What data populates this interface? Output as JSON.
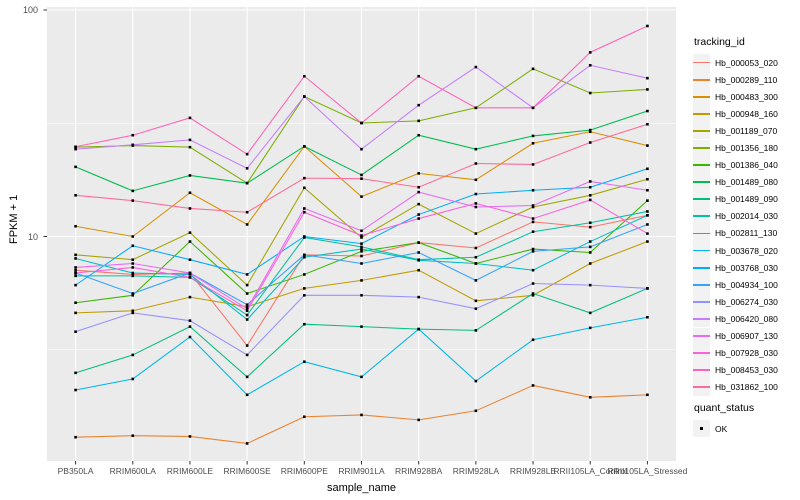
{
  "chart_data": {
    "type": "line",
    "title": "",
    "xlabel": "sample_name",
    "ylabel": "FPKM + 1",
    "y_scale": "log10",
    "y_ticks": [
      10,
      100
    ],
    "y_minor_ticks": [
      3.162,
      31.62
    ],
    "ylim": [
      1.02,
      103
    ],
    "grid": true,
    "panel_bg": "#EBEBEB",
    "gridline_color": "#FFFFFF",
    "point_color": "#000000",
    "legend_position": "right",
    "categories": [
      "PB350LA",
      "RRIM600LA",
      "RRIM600LE",
      "RRIM600SE",
      "RRIM600PE",
      "RRIM901LA",
      "RRIM928BA",
      "RRIM928LA",
      "RRIM928LE",
      "RRII105LA_Control",
      "RRII105LA_Stressed"
    ],
    "legend": {
      "title": "tracking_id"
    },
    "quant_status": {
      "title": "quant_status",
      "items": [
        {
          "label": "OK",
          "marker": "square",
          "color": "#000000"
        }
      ]
    },
    "series": [
      {
        "name": "Hb_000053_020",
        "color": "#F8766D",
        "values": [
          7.1,
          6.8,
          6.9,
          3.3,
          8.3,
          8.2,
          9.4,
          8.9,
          11.6,
          11.0,
          12.4
        ]
      },
      {
        "name": "Hb_000289_110",
        "color": "#EA8331",
        "values": [
          1.3,
          1.32,
          1.31,
          1.22,
          1.6,
          1.63,
          1.55,
          1.7,
          2.2,
          1.95,
          2.0
        ]
      },
      {
        "name": "Hb_000483_300",
        "color": "#D89000",
        "values": [
          11.1,
          10.0,
          15.6,
          11.3,
          25.0,
          15.0,
          19.0,
          17.8,
          25.8,
          29.0,
          25.2
        ]
      },
      {
        "name": "Hb_000948_160",
        "color": "#C09B00",
        "values": [
          4.6,
          4.7,
          5.4,
          4.9,
          5.9,
          6.4,
          7.1,
          5.2,
          5.5,
          7.6,
          9.5
        ]
      },
      {
        "name": "Hb_001189_070",
        "color": "#A3A500",
        "values": [
          8.3,
          7.9,
          10.4,
          6.1,
          16.4,
          9.9,
          13.9,
          10.3,
          13.5,
          15.2,
          17.9
        ]
      },
      {
        "name": "Hb_001356_180",
        "color": "#7CAE00",
        "values": [
          24.8,
          25.2,
          24.8,
          17.2,
          41.5,
          31.7,
          32.4,
          37.0,
          55.0,
          43.0,
          44.6
        ]
      },
      {
        "name": "Hb_001386_040",
        "color": "#39B600",
        "values": [
          5.1,
          5.5,
          9.5,
          5.6,
          6.8,
          8.6,
          9.4,
          7.6,
          8.8,
          8.5,
          14.4
        ]
      },
      {
        "name": "Hb_001489_080",
        "color": "#00BB4E",
        "values": [
          20.3,
          15.9,
          18.6,
          17.2,
          25.0,
          18.7,
          28.0,
          24.3,
          27.8,
          29.5,
          35.8
        ]
      },
      {
        "name": "Hb_001489_090",
        "color": "#00BF7D",
        "values": [
          2.5,
          3.0,
          4.0,
          2.4,
          4.1,
          4.0,
          3.9,
          3.85,
          5.6,
          4.6,
          5.9
        ]
      },
      {
        "name": "Hb_002014_030",
        "color": "#00C1A3",
        "values": [
          6.7,
          6.7,
          6.6,
          4.5,
          9.9,
          9.0,
          7.9,
          8.1,
          10.5,
          11.5,
          12.9
        ]
      },
      {
        "name": "Hb_002811_130",
        "color": "#00BFC4",
        "values": [
          8.0,
          6.9,
          6.8,
          4.3,
          8.1,
          8.8,
          7.85,
          7.6,
          7.1,
          9.5,
          12.4
        ]
      },
      {
        "name": "Hb_003678_020",
        "color": "#00B8E7",
        "values": [
          2.1,
          2.35,
          3.6,
          2.0,
          2.8,
          2.4,
          3.9,
          2.3,
          3.5,
          3.95,
          4.4
        ]
      },
      {
        "name": "Hb_003768_030",
        "color": "#00ACFC",
        "values": [
          6.1,
          9.1,
          7.9,
          6.8,
          10.0,
          9.3,
          12.5,
          15.4,
          16.0,
          16.5,
          19.9
        ]
      },
      {
        "name": "Hb_004934_100",
        "color": "#35A2FF",
        "values": [
          6.9,
          5.6,
          6.9,
          5.0,
          8.3,
          7.6,
          8.5,
          6.4,
          8.6,
          9.0,
          11.3
        ]
      },
      {
        "name": "Hb_006274_030",
        "color": "#9590FF",
        "values": [
          3.8,
          4.6,
          4.25,
          3.0,
          5.5,
          5.5,
          5.4,
          4.8,
          6.2,
          6.1,
          5.9
        ]
      },
      {
        "name": "Hb_006420_080",
        "color": "#C77CFF",
        "values": [
          24.3,
          25.4,
          26.7,
          20.0,
          41.5,
          24.3,
          38.0,
          56.0,
          37.0,
          57.0,
          50.0
        ]
      },
      {
        "name": "Hb_006907_130",
        "color": "#E76BF3",
        "values": [
          7.3,
          7.6,
          6.9,
          4.8,
          13.3,
          10.6,
          15.7,
          13.5,
          13.7,
          17.5,
          16.0
        ]
      },
      {
        "name": "Hb_007928_030",
        "color": "#FA62DB",
        "values": [
          6.9,
          7.3,
          6.6,
          4.7,
          12.8,
          10.1,
          12.0,
          14.0,
          12.0,
          14.5,
          10.3
        ]
      },
      {
        "name": "Hb_008453_030",
        "color": "#FF62BC",
        "values": [
          24.9,
          28.0,
          33.4,
          23.1,
          51.0,
          31.7,
          51.0,
          37.0,
          37.0,
          65.0,
          85.0
        ]
      },
      {
        "name": "Hb_031862_100",
        "color": "#FF6A98",
        "values": [
          15.2,
          14.4,
          13.3,
          12.8,
          18.1,
          18.0,
          16.5,
          21.0,
          20.8,
          26.0,
          31.3
        ]
      }
    ]
  }
}
